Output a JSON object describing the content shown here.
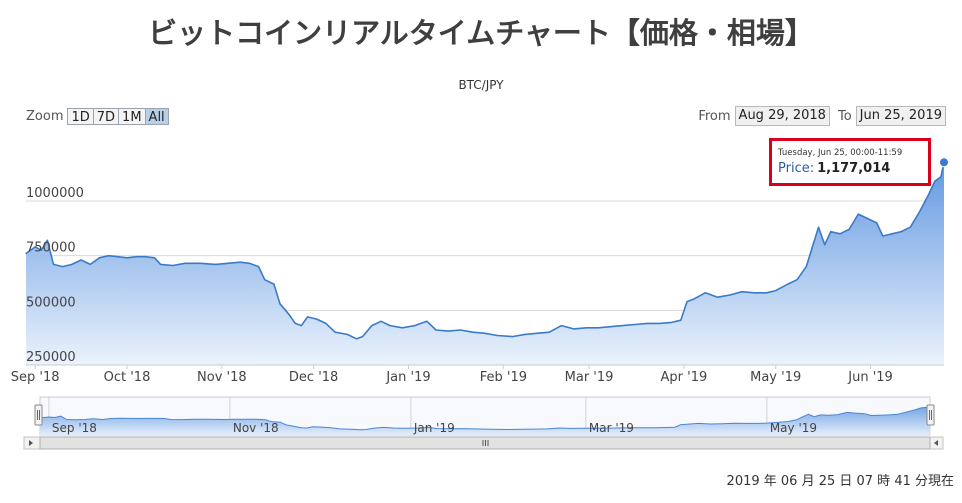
{
  "header": {
    "title": "ビットコインリアルタイムチャート【価格・相場】",
    "subtitle": "BTC/JPY"
  },
  "zoom": {
    "label": "Zoom",
    "buttons": [
      {
        "label": "1D",
        "active": false
      },
      {
        "label": "7D",
        "active": false
      },
      {
        "label": "1M",
        "active": false
      },
      {
        "label": "All",
        "active": true
      }
    ]
  },
  "range": {
    "from_label": "From",
    "from_value": "Aug 29, 2018",
    "to_label": "To",
    "to_value": "Jun 25, 2019"
  },
  "tooltip": {
    "date": "Tuesday, Jun 25, 00:00-11:59",
    "price_label": "Price:",
    "price_value": "1,177,014"
  },
  "timestamp": "2019 年 06 月 25 日  07 時 41 分現在",
  "colors": {
    "line": "#3a7bc8",
    "area_top": "#5b93df",
    "area_bottom": "#eaf2fc",
    "grid": "#d8d8d8",
    "tooltip_border": "#d9001b"
  },
  "chart_data": {
    "type": "area",
    "series": [
      {
        "values": [
          [
            "2018-08-29",
            760000
          ],
          [
            "2018-09-01",
            790000
          ],
          [
            "2018-09-03",
            775000
          ],
          [
            "2018-09-05",
            820000
          ],
          [
            "2018-09-07",
            710000
          ],
          [
            "2018-09-10",
            700000
          ],
          [
            "2018-09-13",
            710000
          ],
          [
            "2018-09-16",
            730000
          ],
          [
            "2018-09-19",
            710000
          ],
          [
            "2018-09-22",
            740000
          ],
          [
            "2018-09-25",
            750000
          ],
          [
            "2018-09-28",
            745000
          ],
          [
            "2018-10-01",
            740000
          ],
          [
            "2018-10-04",
            745000
          ],
          [
            "2018-10-07",
            745000
          ],
          [
            "2018-10-10",
            740000
          ],
          [
            "2018-10-12",
            710000
          ],
          [
            "2018-10-16",
            705000
          ],
          [
            "2018-10-20",
            715000
          ],
          [
            "2018-10-25",
            715000
          ],
          [
            "2018-10-30",
            710000
          ],
          [
            "2018-11-03",
            715000
          ],
          [
            "2018-11-07",
            720000
          ],
          [
            "2018-11-10",
            715000
          ],
          [
            "2018-11-13",
            700000
          ],
          [
            "2018-11-15",
            640000
          ],
          [
            "2018-11-18",
            620000
          ],
          [
            "2018-11-20",
            530000
          ],
          [
            "2018-11-23",
            480000
          ],
          [
            "2018-11-25",
            440000
          ],
          [
            "2018-11-27",
            430000
          ],
          [
            "2018-11-29",
            470000
          ],
          [
            "2018-12-02",
            460000
          ],
          [
            "2018-12-05",
            440000
          ],
          [
            "2018-12-08",
            400000
          ],
          [
            "2018-12-12",
            390000
          ],
          [
            "2018-12-15",
            370000
          ],
          [
            "2018-12-17",
            380000
          ],
          [
            "2018-12-20",
            430000
          ],
          [
            "2018-12-23",
            450000
          ],
          [
            "2018-12-26",
            430000
          ],
          [
            "2018-12-30",
            420000
          ],
          [
            "2019-01-03",
            430000
          ],
          [
            "2019-01-07",
            450000
          ],
          [
            "2019-01-10",
            410000
          ],
          [
            "2019-01-14",
            405000
          ],
          [
            "2019-01-18",
            410000
          ],
          [
            "2019-01-22",
            400000
          ],
          [
            "2019-01-26",
            395000
          ],
          [
            "2019-01-30",
            385000
          ],
          [
            "2019-02-04",
            380000
          ],
          [
            "2019-02-08",
            390000
          ],
          [
            "2019-02-12",
            395000
          ],
          [
            "2019-02-16",
            400000
          ],
          [
            "2019-02-20",
            430000
          ],
          [
            "2019-02-24",
            415000
          ],
          [
            "2019-02-28",
            420000
          ],
          [
            "2019-03-04",
            420000
          ],
          [
            "2019-03-08",
            425000
          ],
          [
            "2019-03-12",
            430000
          ],
          [
            "2019-03-16",
            435000
          ],
          [
            "2019-03-20",
            440000
          ],
          [
            "2019-03-24",
            440000
          ],
          [
            "2019-03-28",
            445000
          ],
          [
            "2019-03-31",
            455000
          ],
          [
            "2019-04-02",
            540000
          ],
          [
            "2019-04-04",
            550000
          ],
          [
            "2019-04-08",
            580000
          ],
          [
            "2019-04-12",
            560000
          ],
          [
            "2019-04-16",
            570000
          ],
          [
            "2019-04-20",
            585000
          ],
          [
            "2019-04-24",
            580000
          ],
          [
            "2019-04-28",
            580000
          ],
          [
            "2019-05-01",
            590000
          ],
          [
            "2019-05-05",
            620000
          ],
          [
            "2019-05-08",
            640000
          ],
          [
            "2019-05-11",
            700000
          ],
          [
            "2019-05-13",
            790000
          ],
          [
            "2019-05-15",
            880000
          ],
          [
            "2019-05-17",
            800000
          ],
          [
            "2019-05-19",
            860000
          ],
          [
            "2019-05-22",
            850000
          ],
          [
            "2019-05-25",
            870000
          ],
          [
            "2019-05-28",
            940000
          ],
          [
            "2019-05-31",
            920000
          ],
          [
            "2019-06-03",
            900000
          ],
          [
            "2019-06-05",
            840000
          ],
          [
            "2019-06-08",
            850000
          ],
          [
            "2019-06-11",
            860000
          ],
          [
            "2019-06-14",
            880000
          ],
          [
            "2019-06-17",
            950000
          ],
          [
            "2019-06-20",
            1030000
          ],
          [
            "2019-06-22",
            1090000
          ],
          [
            "2019-06-24",
            1110000
          ],
          [
            "2019-06-25",
            1177014
          ]
        ]
      }
    ],
    "x_range": [
      "2018-08-29",
      "2019-06-25"
    ],
    "y_ticks": [
      250000,
      500000,
      750000,
      1000000
    ],
    "ylim": [
      250000,
      1320000
    ],
    "x_ticks": [
      {
        "date": "2018-09-01",
        "label": "Sep '18"
      },
      {
        "date": "2018-10-01",
        "label": "Oct '18"
      },
      {
        "date": "2018-11-01",
        "label": "Nov '18"
      },
      {
        "date": "2018-12-01",
        "label": "Dec '18"
      },
      {
        "date": "2019-01-01",
        "label": "Jan '19"
      },
      {
        "date": "2019-02-01",
        "label": "Feb '19"
      },
      {
        "date": "2019-03-01",
        "label": "Mar '19"
      },
      {
        "date": "2019-04-01",
        "label": "Apr '19"
      },
      {
        "date": "2019-05-01",
        "label": "May '19"
      },
      {
        "date": "2019-06-01",
        "label": "Jun '19"
      }
    ],
    "navigator_ticks": [
      {
        "date": "2018-09-01",
        "label": "Sep '18"
      },
      {
        "date": "2018-11-01",
        "label": "Nov '18"
      },
      {
        "date": "2019-01-01",
        "label": "Jan '19"
      },
      {
        "date": "2019-03-01",
        "label": "Mar '19"
      },
      {
        "date": "2019-05-01",
        "label": "May '19"
      }
    ],
    "grid": true,
    "legend": "none"
  }
}
